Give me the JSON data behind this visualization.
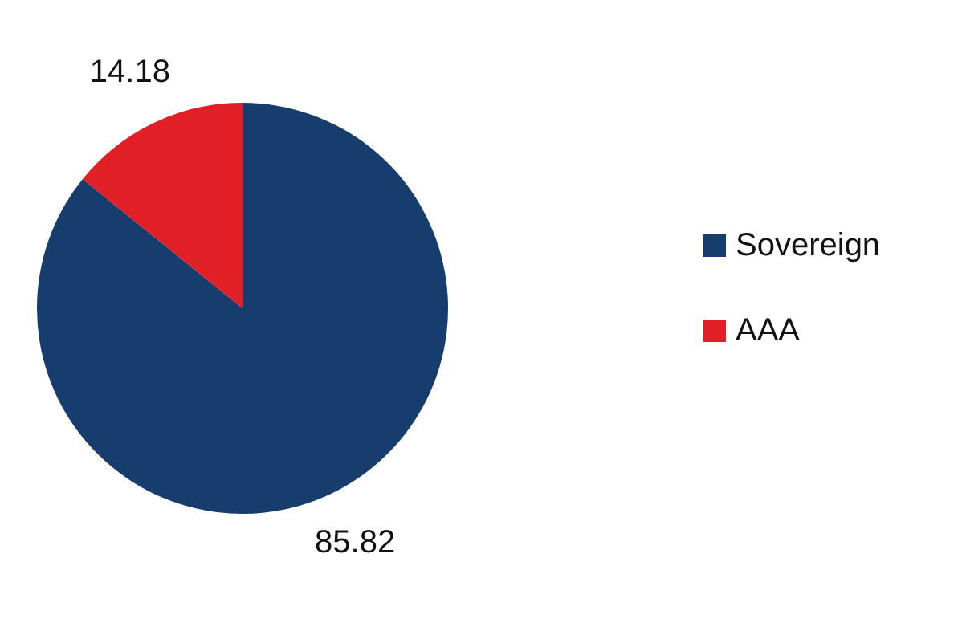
{
  "chart_data": {
    "type": "pie",
    "categories": [
      "Sovereign",
      "AAA"
    ],
    "values": [
      85.82,
      14.18
    ],
    "colors": [
      "#173c6e",
      "#e01f26"
    ],
    "data_labels": true,
    "legend": "right"
  }
}
